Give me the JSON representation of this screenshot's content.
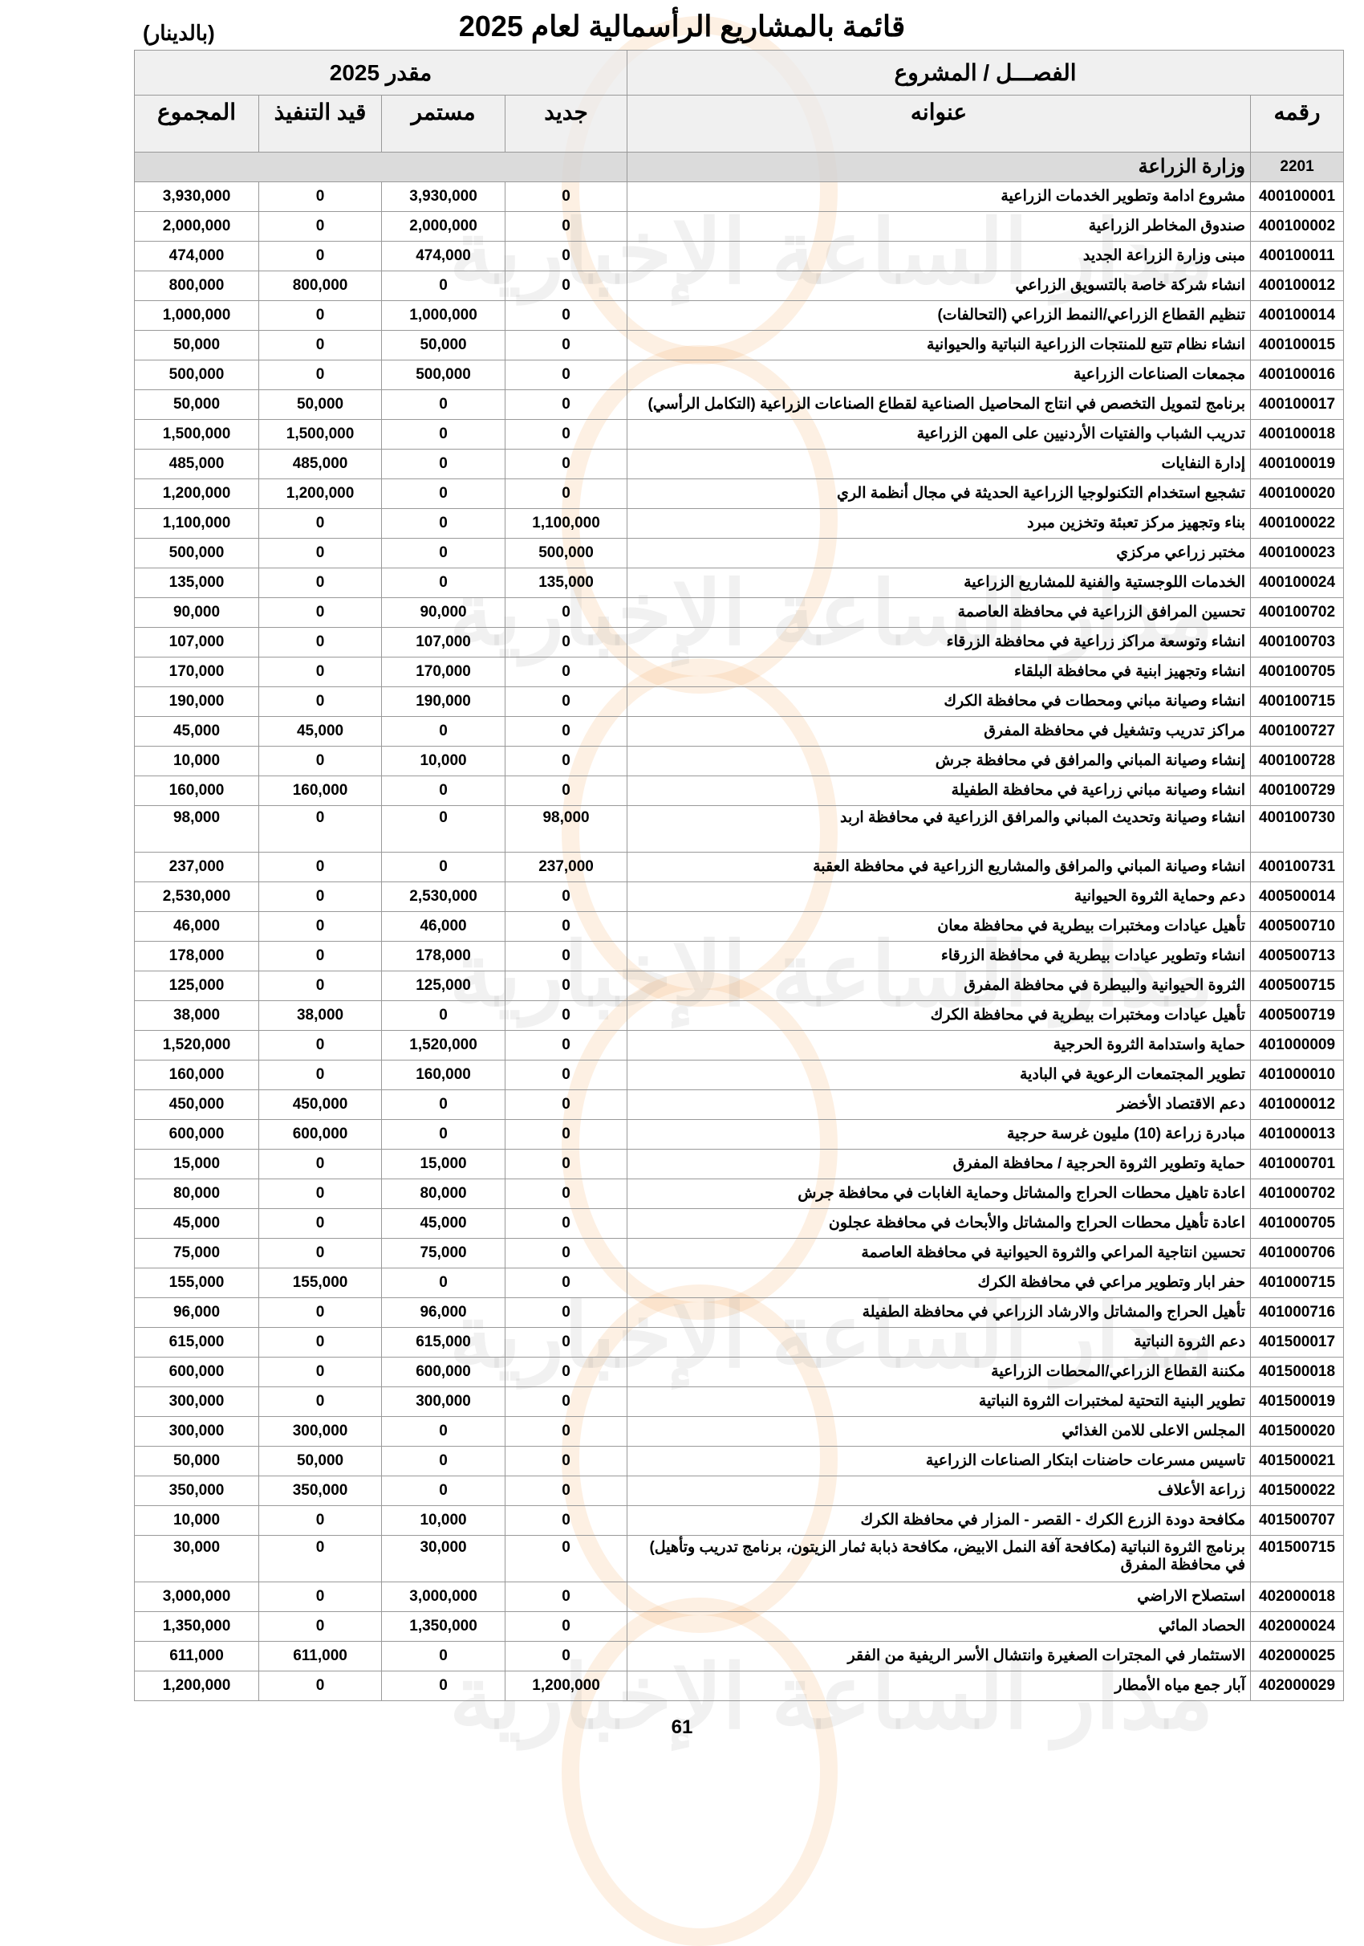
{
  "title": "قائمة بالمشاريع الرأسمالية لعام 2025",
  "unit": "(بالدينار)",
  "header": {
    "chapter_project": "الفصـــل / المشروع",
    "estimate": "مقدر  2025",
    "number": "رقمه",
    "name": "عنوانه",
    "new": "جديد",
    "continuing": "مستمر",
    "in_progress": "قيد التنفيذ",
    "total": "المجموع"
  },
  "section": {
    "code": "2201",
    "name": "وزارة الزراعة"
  },
  "rows": [
    {
      "code": "400100001",
      "name": "مشروع ادامة وتطوير الخدمات الزراعية",
      "new": "0",
      "continuing": "3,930,000",
      "in_progress": "0",
      "total": "3,930,000"
    },
    {
      "code": "400100002",
      "name": "صندوق المخاطر الزراعية",
      "new": "0",
      "continuing": "2,000,000",
      "in_progress": "0",
      "total": "2,000,000"
    },
    {
      "code": "400100011",
      "name": "مبنى وزارة الزراعة الجديد",
      "new": "0",
      "continuing": "474,000",
      "in_progress": "0",
      "total": "474,000"
    },
    {
      "code": "400100012",
      "name": "انشاء شركة خاصة بالتسويق الزراعي",
      "new": "0",
      "continuing": "0",
      "in_progress": "800,000",
      "total": "800,000"
    },
    {
      "code": "400100014",
      "name": "تنظيم القطاع الزراعي/النمط الزراعي (التحالفات)",
      "new": "0",
      "continuing": "1,000,000",
      "in_progress": "0",
      "total": "1,000,000"
    },
    {
      "code": "400100015",
      "name": "انشاء نظام تتبع للمنتجات الزراعية النباتية والحيوانية",
      "new": "0",
      "continuing": "50,000",
      "in_progress": "0",
      "total": "50,000"
    },
    {
      "code": "400100016",
      "name": "مجمعات الصناعات الزراعية",
      "new": "0",
      "continuing": "500,000",
      "in_progress": "0",
      "total": "500,000"
    },
    {
      "code": "400100017",
      "name": "برنامج لتمويل التخصص في انتاج المحاصيل الصناعية لقطاع الصناعات الزراعية (التكامل الرأسي)",
      "new": "0",
      "continuing": "0",
      "in_progress": "50,000",
      "total": "50,000"
    },
    {
      "code": "400100018",
      "name": "تدريب الشباب والفتيات الأردنيين على المهن الزراعية",
      "new": "0",
      "continuing": "0",
      "in_progress": "1,500,000",
      "total": "1,500,000"
    },
    {
      "code": "400100019",
      "name": "إدارة النفايات",
      "new": "0",
      "continuing": "0",
      "in_progress": "485,000",
      "total": "485,000"
    },
    {
      "code": "400100020",
      "name": "تشجيع استخدام التكنولوجيا الزراعية الحديثة في مجال أنظمة الري",
      "new": "0",
      "continuing": "0",
      "in_progress": "1,200,000",
      "total": "1,200,000"
    },
    {
      "code": "400100022",
      "name": "بناء وتجهيز مركز تعبئة وتخزين مبرد",
      "new": "1,100,000",
      "continuing": "0",
      "in_progress": "0",
      "total": "1,100,000"
    },
    {
      "code": "400100023",
      "name": "مختبر زراعي مركزي",
      "new": "500,000",
      "continuing": "0",
      "in_progress": "0",
      "total": "500,000"
    },
    {
      "code": "400100024",
      "name": "الخدمات اللوجستية والفنية للمشاريع الزراعية",
      "new": "135,000",
      "continuing": "0",
      "in_progress": "0",
      "total": "135,000"
    },
    {
      "code": "400100702",
      "name": "تحسين المرافق الزراعية في محافظة العاصمة",
      "new": "0",
      "continuing": "90,000",
      "in_progress": "0",
      "total": "90,000"
    },
    {
      "code": "400100703",
      "name": "انشاء وتوسعة مراكز زراعية في محافظة الزرقاء",
      "new": "0",
      "continuing": "107,000",
      "in_progress": "0",
      "total": "107,000"
    },
    {
      "code": "400100705",
      "name": "انشاء وتجهيز ابنية في محافظة البلقاء",
      "new": "0",
      "continuing": "170,000",
      "in_progress": "0",
      "total": "170,000"
    },
    {
      "code": "400100715",
      "name": "انشاء وصيانة مباني ومحطات في محافظة الكرك",
      "new": "0",
      "continuing": "190,000",
      "in_progress": "0",
      "total": "190,000"
    },
    {
      "code": "400100727",
      "name": "مراكز تدريب وتشغيل في محافظة المفرق",
      "new": "0",
      "continuing": "0",
      "in_progress": "45,000",
      "total": "45,000"
    },
    {
      "code": "400100728",
      "name": "إنشاء وصيانة المباني والمرافق في محافظة جرش",
      "new": "0",
      "continuing": "10,000",
      "in_progress": "0",
      "total": "10,000"
    },
    {
      "code": "400100729",
      "name": "انشاء وصيانة مباني زراعية في محافظة الطفيلة",
      "new": "0",
      "continuing": "0",
      "in_progress": "160,000",
      "total": "160,000"
    },
    {
      "code": "400100730",
      "name": "انشاء وصيانة وتحديث المباني والمرافق الزراعية في محافظة اربد",
      "new": "98,000",
      "continuing": "0",
      "in_progress": "0",
      "total": "98,000",
      "tall": true
    },
    {
      "code": "400100731",
      "name": "انشاء وصيانة المباني والمرافق والمشاريع الزراعية في محافظة العقبة",
      "new": "237,000",
      "continuing": "0",
      "in_progress": "0",
      "total": "237,000"
    },
    {
      "code": "400500014",
      "name": "دعم وحماية الثروة الحيوانية",
      "new": "0",
      "continuing": "2,530,000",
      "in_progress": "0",
      "total": "2,530,000"
    },
    {
      "code": "400500710",
      "name": "تأهيل عيادات ومختبرات بيطرية في محافظة معان",
      "new": "0",
      "continuing": "46,000",
      "in_progress": "0",
      "total": "46,000"
    },
    {
      "code": "400500713",
      "name": "انشاء وتطوير عيادات بيطرية في محافظة الزرقاء",
      "new": "0",
      "continuing": "178,000",
      "in_progress": "0",
      "total": "178,000"
    },
    {
      "code": "400500715",
      "name": "الثروة الحيوانية والبيطرة في محافظة المفرق",
      "new": "0",
      "continuing": "125,000",
      "in_progress": "0",
      "total": "125,000"
    },
    {
      "code": "400500719",
      "name": "تأهيل عيادات ومختبرات بيطرية في محافظة الكرك",
      "new": "0",
      "continuing": "0",
      "in_progress": "38,000",
      "total": "38,000"
    },
    {
      "code": "401000009",
      "name": "حماية واستدامة الثروة الحرجية",
      "new": "0",
      "continuing": "1,520,000",
      "in_progress": "0",
      "total": "1,520,000"
    },
    {
      "code": "401000010",
      "name": "تطوير المجتمعات الرعوية في البادية",
      "new": "0",
      "continuing": "160,000",
      "in_progress": "0",
      "total": "160,000"
    },
    {
      "code": "401000012",
      "name": "دعم الاقتصاد الأخضر",
      "new": "0",
      "continuing": "0",
      "in_progress": "450,000",
      "total": "450,000"
    },
    {
      "code": "401000013",
      "name": "مبادرة زراعة (10) مليون غرسة حرجية",
      "new": "0",
      "continuing": "0",
      "in_progress": "600,000",
      "total": "600,000"
    },
    {
      "code": "401000701",
      "name": "حماية وتطوير الثروة الحرجية / محافظة المفرق",
      "new": "0",
      "continuing": "15,000",
      "in_progress": "0",
      "total": "15,000"
    },
    {
      "code": "401000702",
      "name": "اعادة تاهيل محطات الحراج والمشاتل وحماية الغابات في محافظة جرش",
      "new": "0",
      "continuing": "80,000",
      "in_progress": "0",
      "total": "80,000"
    },
    {
      "code": "401000705",
      "name": "اعادة تأهيل محطات الحراج والمشاتل والأبحاث في محافظة عجلون",
      "new": "0",
      "continuing": "45,000",
      "in_progress": "0",
      "total": "45,000"
    },
    {
      "code": "401000706",
      "name": "تحسين انتاجية المراعي والثروة الحيوانية في محافظة العاصمة",
      "new": "0",
      "continuing": "75,000",
      "in_progress": "0",
      "total": "75,000"
    },
    {
      "code": "401000715",
      "name": "حفر ابار وتطوير مراعي في محافظة الكرك",
      "new": "0",
      "continuing": "0",
      "in_progress": "155,000",
      "total": "155,000"
    },
    {
      "code": "401000716",
      "name": "تأهيل الحراج والمشاتل والارشاد الزراعي في محافظة الطفيلة",
      "new": "0",
      "continuing": "96,000",
      "in_progress": "0",
      "total": "96,000"
    },
    {
      "code": "401500017",
      "name": "دعم الثروة النباتية",
      "new": "0",
      "continuing": "615,000",
      "in_progress": "0",
      "total": "615,000"
    },
    {
      "code": "401500018",
      "name": "مكننة القطاع الزراعي/المحطات الزراعية",
      "new": "0",
      "continuing": "600,000",
      "in_progress": "0",
      "total": "600,000"
    },
    {
      "code": "401500019",
      "name": "تطوير البنية التحتية لمختبرات الثروة النباتية",
      "new": "0",
      "continuing": "300,000",
      "in_progress": "0",
      "total": "300,000"
    },
    {
      "code": "401500020",
      "name": "المجلس الاعلى للامن الغذائي",
      "new": "0",
      "continuing": "0",
      "in_progress": "300,000",
      "total": "300,000"
    },
    {
      "code": "401500021",
      "name": "تاسيس مسرعات حاضنات ابتكار الصناعات الزراعية",
      "new": "0",
      "continuing": "0",
      "in_progress": "50,000",
      "total": "50,000"
    },
    {
      "code": "401500022",
      "name": "زراعة الأعلاف",
      "new": "0",
      "continuing": "0",
      "in_progress": "350,000",
      "total": "350,000"
    },
    {
      "code": "401500707",
      "name": "مكافحة دودة الزرع الكرك - القصر - المزار في محافظة الكرك",
      "new": "0",
      "continuing": "10,000",
      "in_progress": "0",
      "total": "10,000"
    },
    {
      "code": "401500715",
      "name": "برنامج الثروة النباتية (مكافحة آفة النمل الابيض، مكافحة ذبابة ثمار الزيتون، برنامج تدريب وتأهيل) في محافظة المفرق",
      "new": "0",
      "continuing": "30,000",
      "in_progress": "0",
      "total": "30,000",
      "tall": true
    },
    {
      "code": "402000018",
      "name": "استصلاح الاراضي",
      "new": "0",
      "continuing": "3,000,000",
      "in_progress": "0",
      "total": "3,000,000"
    },
    {
      "code": "402000024",
      "name": "الحصاد المائي",
      "new": "0",
      "continuing": "1,350,000",
      "in_progress": "0",
      "total": "1,350,000"
    },
    {
      "code": "402000025",
      "name": "الاستثمار في المجترات الصغيرة وانتشال الأسر الريفية من الفقر",
      "new": "0",
      "continuing": "0",
      "in_progress": "611,000",
      "total": "611,000"
    },
    {
      "code": "402000029",
      "name": "آبار جمع مياه الأمطار",
      "new": "1,200,000",
      "continuing": "0",
      "in_progress": "0",
      "total": "1,200,000"
    }
  ],
  "page_number": "61",
  "watermark": {
    "text": "مدار الساعة الإخبارية",
    "color": "#f5aa64"
  }
}
